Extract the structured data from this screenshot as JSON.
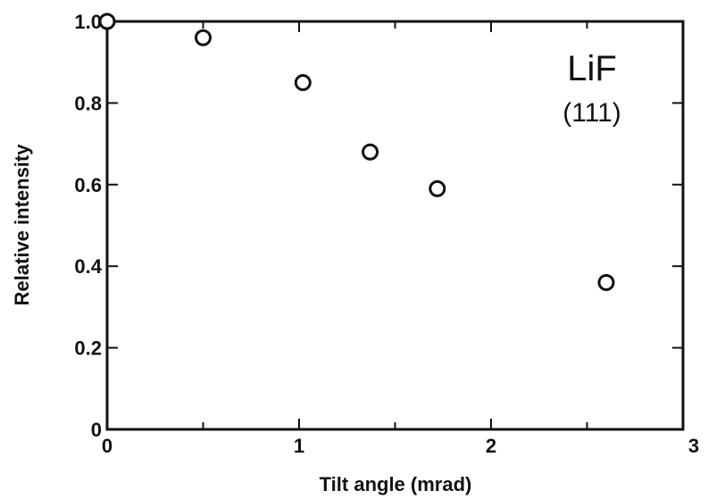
{
  "chart_data": {
    "type": "scatter",
    "title": "",
    "xlabel": "Tilt angle (mrad)",
    "ylabel": "Relative intensity",
    "xlim": [
      0,
      3
    ],
    "ylim": [
      0,
      1.0
    ],
    "xticks": [
      0,
      1,
      2,
      3
    ],
    "xtick_labels": [
      "0",
      "1",
      "2",
      "3"
    ],
    "yticks": [
      0,
      0.2,
      0.4,
      0.6,
      0.8,
      1.0
    ],
    "ytick_labels": [
      "0",
      "0.2",
      "0.4",
      "0.6",
      "0.8",
      "1.0"
    ],
    "grid": false,
    "marker": "open-circle",
    "series": [
      {
        "x": [
          0.0,
          0.5,
          1.02,
          1.37,
          1.72,
          2.6
        ],
        "y": [
          1.0,
          0.96,
          0.85,
          0.68,
          0.59,
          0.36
        ]
      }
    ],
    "annotations": [
      "LiF",
      "(111)"
    ]
  }
}
